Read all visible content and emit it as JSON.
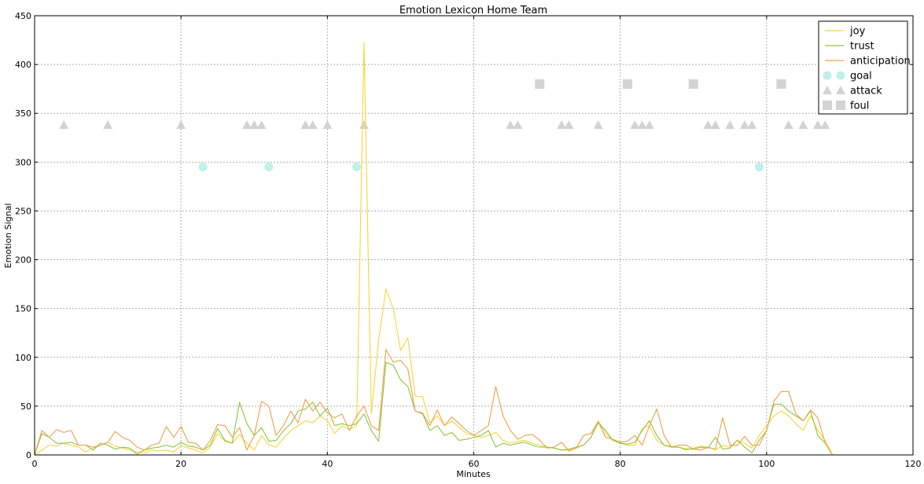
{
  "chart_data": {
    "type": "line",
    "title": "Emotion Lexicon Home Team",
    "xlabel": "Minutes",
    "ylabel": "Emotion Signal",
    "xlim": [
      0,
      120
    ],
    "ylim": [
      0,
      450
    ],
    "xticks": [
      0,
      20,
      40,
      60,
      80,
      100,
      120
    ],
    "yticks": [
      0,
      50,
      100,
      150,
      200,
      250,
      300,
      350,
      400,
      450
    ],
    "grid": true,
    "legend_position": "top-right",
    "series": [
      {
        "name": "joy",
        "color": "#f6d53a",
        "x": [
          0,
          1,
          2,
          3,
          4,
          5,
          6,
          7,
          8,
          9,
          10,
          11,
          12,
          13,
          14,
          15,
          16,
          17,
          18,
          19,
          20,
          21,
          22,
          23,
          24,
          25,
          26,
          27,
          28,
          29,
          30,
          31,
          32,
          33,
          34,
          35,
          36,
          37,
          38,
          39,
          40,
          41,
          42,
          43,
          44,
          45,
          46,
          47,
          48,
          49,
          50,
          51,
          52,
          53,
          54,
          55,
          56,
          57,
          58,
          59,
          60,
          61,
          62,
          63,
          64,
          65,
          66,
          67,
          68,
          69,
          70,
          71,
          72,
          73,
          74,
          75,
          76,
          77,
          78,
          79,
          80,
          81,
          82,
          83,
          84,
          85,
          86,
          87,
          88,
          89,
          90,
          91,
          92,
          93,
          94,
          95,
          96,
          97,
          98,
          99,
          100,
          101,
          102,
          103,
          104,
          105,
          106,
          107,
          108,
          109,
          110
        ],
        "y": [
          0,
          5,
          10,
          9,
          12,
          10,
          8,
          3,
          7,
          10,
          13,
          9,
          7,
          5,
          3,
          2,
          5,
          4,
          5,
          3,
          10,
          7,
          5,
          2,
          8,
          22,
          14,
          12,
          21,
          12,
          5,
          20,
          10,
          8,
          17,
          25,
          30,
          35,
          33,
          40,
          35,
          22,
          30,
          26,
          30,
          423,
          42,
          118,
          170,
          150,
          107,
          120,
          60,
          60,
          33,
          40,
          30,
          35,
          28,
          22,
          20,
          18,
          20,
          23,
          15,
          12,
          14,
          15,
          12,
          10,
          8,
          7,
          5,
          5,
          7,
          10,
          18,
          35,
          22,
          15,
          12,
          10,
          10,
          27,
          30,
          15,
          10,
          9,
          8,
          5,
          7,
          9,
          8,
          5,
          10,
          8,
          15,
          12,
          7,
          20,
          30,
          40,
          45,
          40,
          32,
          25,
          40,
          25,
          15,
          0,
          0
        ]
      },
      {
        "name": "trust",
        "color": "#8cc63f",
        "x": [
          0,
          1,
          2,
          3,
          4,
          5,
          6,
          7,
          8,
          9,
          10,
          11,
          12,
          13,
          14,
          15,
          16,
          17,
          18,
          19,
          20,
          21,
          22,
          23,
          24,
          25,
          26,
          27,
          28,
          29,
          30,
          31,
          32,
          33,
          34,
          35,
          36,
          37,
          38,
          39,
          40,
          41,
          42,
          43,
          44,
          45,
          46,
          47,
          48,
          49,
          50,
          51,
          52,
          53,
          54,
          55,
          56,
          57,
          58,
          59,
          60,
          61,
          62,
          63,
          64,
          65,
          66,
          67,
          68,
          69,
          70,
          71,
          72,
          73,
          74,
          75,
          76,
          77,
          78,
          79,
          80,
          81,
          82,
          83,
          84,
          85,
          86,
          87,
          88,
          89,
          90,
          91,
          92,
          93,
          94,
          95,
          96,
          97,
          98,
          99,
          100,
          101,
          102,
          103,
          104,
          105,
          106,
          107,
          108,
          109,
          110
        ],
        "y": [
          0,
          22,
          18,
          12,
          12,
          13,
          10,
          10,
          5,
          12,
          10,
          6,
          8,
          7,
          1,
          5,
          7,
          8,
          10,
          8,
          13,
          9,
          8,
          5,
          10,
          27,
          15,
          12,
          54,
          32,
          20,
          28,
          14,
          15,
          25,
          32,
          45,
          47,
          54,
          40,
          48,
          30,
          32,
          30,
          32,
          42,
          25,
          14,
          95,
          92,
          77,
          70,
          45,
          42,
          25,
          30,
          20,
          23,
          15,
          16,
          18,
          20,
          25,
          8,
          12,
          10,
          12,
          13,
          10,
          8,
          8,
          7,
          5,
          6,
          8,
          10,
          18,
          33,
          25,
          15,
          12,
          11,
          13,
          25,
          35,
          20,
          10,
          8,
          8,
          6,
          6,
          8,
          7,
          18,
          6,
          7,
          15,
          8,
          2,
          15,
          25,
          52,
          52,
          45,
          40,
          35,
          45,
          20,
          12,
          0,
          0
        ]
      },
      {
        "name": "anticipation",
        "color": "#f0a04b",
        "x": [
          0,
          1,
          2,
          3,
          4,
          5,
          6,
          7,
          8,
          9,
          10,
          11,
          12,
          13,
          14,
          15,
          16,
          17,
          18,
          19,
          20,
          21,
          22,
          23,
          24,
          25,
          26,
          27,
          28,
          29,
          30,
          31,
          32,
          33,
          34,
          35,
          36,
          37,
          38,
          39,
          40,
          41,
          42,
          43,
          44,
          45,
          46,
          47,
          48,
          49,
          50,
          51,
          52,
          53,
          54,
          55,
          56,
          57,
          58,
          59,
          60,
          61,
          62,
          63,
          64,
          65,
          66,
          67,
          68,
          69,
          70,
          71,
          72,
          73,
          74,
          75,
          76,
          77,
          78,
          79,
          80,
          81,
          82,
          83,
          84,
          85,
          86,
          87,
          88,
          89,
          90,
          91,
          92,
          93,
          94,
          95,
          96,
          97,
          98,
          99,
          100,
          101,
          102,
          103,
          104,
          105,
          106,
          107,
          108,
          109,
          110
        ],
        "y": [
          0,
          25,
          18,
          26,
          23,
          25,
          10,
          10,
          8,
          10,
          13,
          24,
          18,
          15,
          8,
          5,
          10,
          12,
          29,
          18,
          29,
          13,
          12,
          5,
          15,
          31,
          30,
          18,
          28,
          5,
          20,
          55,
          50,
          20,
          30,
          45,
          33,
          57,
          45,
          54,
          43,
          38,
          42,
          25,
          40,
          50,
          30,
          25,
          108,
          95,
          97,
          88,
          45,
          43,
          30,
          46,
          30,
          39,
          32,
          25,
          20,
          25,
          30,
          70,
          40,
          25,
          16,
          20,
          21,
          15,
          7,
          8,
          13,
          4,
          7,
          20,
          22,
          34,
          18,
          16,
          13,
          14,
          20,
          10,
          30,
          47,
          20,
          8,
          10,
          10,
          6,
          5,
          8,
          6,
          38,
          10,
          10,
          19,
          10,
          10,
          25,
          55,
          65,
          65,
          42,
          35,
          46,
          38,
          12,
          0,
          0
        ]
      }
    ],
    "events": [
      {
        "name": "goal",
        "color": "#bff0ea",
        "marker": "circle",
        "y": 295,
        "x": [
          23,
          32,
          44,
          99
        ]
      },
      {
        "name": "attack",
        "color": "#d3d3d3",
        "marker": "triangle",
        "y": 338,
        "x": [
          4,
          10,
          20,
          29,
          30,
          31,
          37,
          38,
          40,
          45,
          65,
          66,
          72,
          73,
          77,
          82,
          83,
          84,
          92,
          93,
          95,
          97,
          98,
          103,
          105,
          107,
          108
        ]
      },
      {
        "name": "foul",
        "color": "#d3d3d3",
        "marker": "square",
        "y": 380,
        "x": [
          69,
          81,
          90,
          102
        ]
      }
    ]
  }
}
